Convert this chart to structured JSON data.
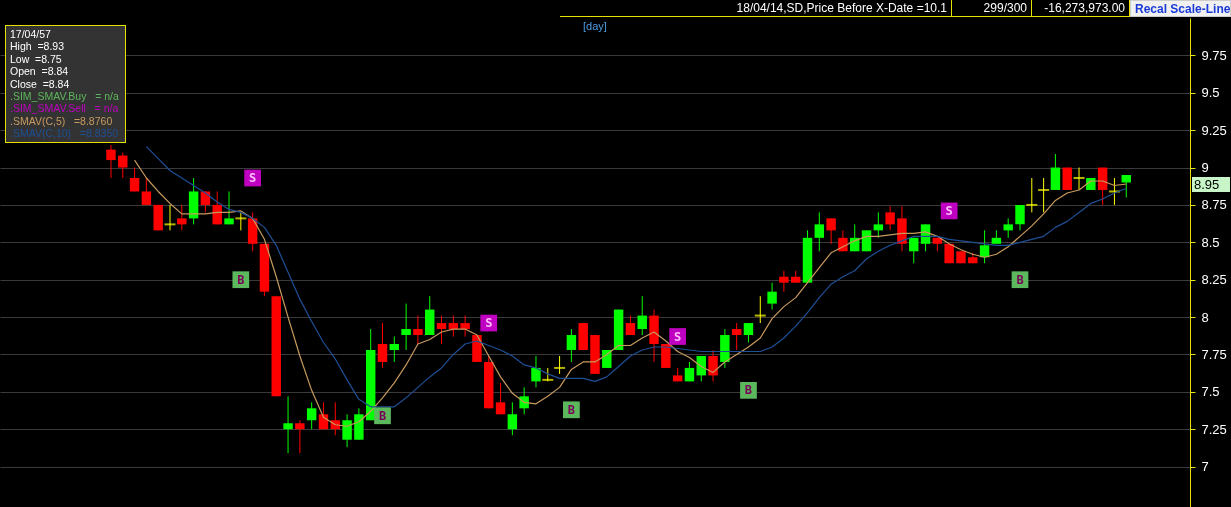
{
  "chart_data": {
    "type": "candlestick",
    "title": "[day]",
    "categories": [
      null,
      null,
      null,
      null,
      null,
      null,
      null,
      null,
      null,
      null,
      null,
      null,
      null,
      null,
      null,
      null,
      null,
      null,
      null,
      null,
      null,
      null,
      null,
      null,
      null,
      null,
      null,
      null,
      null,
      null,
      null,
      null,
      null,
      null,
      null,
      null,
      null,
      null,
      null,
      null,
      null,
      null,
      null,
      null,
      null,
      null,
      null,
      null,
      null,
      null,
      null,
      null,
      null,
      null,
      null,
      null,
      null,
      null,
      null,
      null,
      null,
      null,
      null,
      null,
      null,
      null,
      null,
      null,
      null,
      null,
      null,
      null,
      null,
      null,
      null,
      null,
      null,
      null,
      null,
      null,
      null,
      null,
      null,
      null,
      null,
      null,
      null,
      null,
      null,
      null,
      null,
      null,
      null,
      null,
      null,
      null,
      null,
      null,
      null,
      null,
      null
    ],
    "ohlc": [
      null,
      null,
      null,
      null,
      null,
      null,
      null,
      null,
      null,
      [
        9.12,
        9.15,
        8.93,
        9.05
      ],
      [
        9.08,
        9.1,
        8.93,
        9.0
      ],
      [
        8.93,
        9.0,
        8.84,
        8.84
      ],
      [
        8.84,
        8.93,
        8.75,
        8.75
      ],
      [
        8.75,
        8.75,
        8.58,
        8.58
      ],
      [
        8.62,
        8.75,
        8.58,
        8.62
      ],
      [
        8.66,
        8.75,
        8.58,
        8.62
      ],
      [
        8.66,
        8.93,
        8.62,
        8.84
      ],
      [
        8.84,
        8.84,
        8.7,
        8.75
      ],
      [
        8.75,
        8.84,
        8.62,
        8.62
      ],
      [
        8.62,
        8.84,
        8.62,
        8.66
      ],
      [
        8.66,
        8.7,
        8.58,
        8.66
      ],
      [
        8.66,
        8.7,
        8.44,
        8.49
      ],
      [
        8.49,
        8.49,
        8.14,
        8.17
      ],
      [
        8.14,
        8.14,
        7.47,
        7.47
      ],
      [
        7.25,
        7.47,
        7.09,
        7.29
      ],
      [
        7.29,
        7.31,
        7.09,
        7.25
      ],
      [
        7.31,
        7.43,
        7.25,
        7.39
      ],
      [
        7.35,
        7.43,
        7.25,
        7.25
      ],
      [
        7.31,
        7.43,
        7.21,
        7.25
      ],
      [
        7.18,
        7.35,
        7.13,
        7.31
      ],
      [
        7.18,
        7.39,
        7.18,
        7.35
      ],
      [
        7.31,
        7.92,
        7.31,
        7.78
      ],
      [
        7.82,
        7.96,
        7.66,
        7.7
      ],
      [
        7.78,
        7.87,
        7.7,
        7.82
      ],
      [
        7.88,
        8.09,
        7.78,
        7.92
      ],
      [
        7.92,
        8.01,
        7.82,
        7.88
      ],
      [
        7.88,
        8.14,
        7.88,
        8.05
      ],
      [
        7.96,
        8.01,
        7.82,
        7.92
      ],
      [
        7.96,
        8.01,
        7.87,
        7.92
      ],
      [
        7.96,
        8.01,
        7.87,
        7.92
      ],
      [
        7.88,
        7.88,
        7.7,
        7.7
      ],
      [
        7.7,
        7.74,
        7.39,
        7.39
      ],
      [
        7.43,
        7.56,
        7.35,
        7.35
      ],
      [
        7.25,
        7.43,
        7.21,
        7.35
      ],
      [
        7.39,
        7.53,
        7.35,
        7.47
      ],
      [
        7.57,
        7.74,
        7.53,
        7.66
      ],
      [
        7.58,
        7.66,
        7.57,
        7.58
      ],
      [
        7.66,
        7.74,
        7.62,
        7.66
      ],
      [
        7.78,
        7.92,
        7.7,
        7.88
      ],
      [
        7.96,
        7.96,
        7.78,
        7.78
      ],
      [
        7.88,
        7.88,
        7.62,
        7.62
      ],
      [
        7.66,
        7.78,
        7.66,
        7.78
      ],
      [
        7.78,
        8.05,
        7.78,
        8.05
      ],
      [
        7.96,
        8.01,
        7.88,
        7.88
      ],
      [
        7.92,
        8.14,
        7.88,
        8.01
      ],
      [
        8.01,
        8.05,
        7.7,
        7.82
      ],
      [
        7.82,
        7.82,
        7.66,
        7.66
      ],
      [
        7.61,
        7.66,
        7.57,
        7.57
      ],
      [
        7.57,
        7.7,
        7.57,
        7.66
      ],
      [
        7.61,
        7.74,
        7.57,
        7.74
      ],
      [
        7.74,
        7.78,
        7.57,
        7.61
      ],
      [
        7.7,
        7.92,
        7.66,
        7.88
      ],
      [
        7.92,
        7.96,
        7.78,
        7.88
      ],
      [
        7.88,
        7.96,
        7.83,
        7.96
      ],
      [
        8.01,
        8.14,
        7.96,
        8.01
      ],
      [
        8.09,
        8.23,
        8.05,
        8.17
      ],
      [
        8.27,
        8.31,
        8.17,
        8.23
      ],
      [
        8.27,
        8.31,
        8.23,
        8.23
      ],
      [
        8.23,
        8.58,
        8.23,
        8.53
      ],
      [
        8.53,
        8.7,
        8.44,
        8.62
      ],
      [
        8.66,
        8.66,
        8.49,
        8.58
      ],
      [
        8.53,
        8.58,
        8.44,
        8.44
      ],
      [
        8.44,
        8.62,
        8.44,
        8.53
      ],
      [
        8.44,
        8.58,
        8.44,
        8.58
      ],
      [
        8.58,
        8.7,
        8.53,
        8.62
      ],
      [
        8.7,
        8.74,
        8.58,
        8.62
      ],
      [
        8.66,
        8.74,
        8.44,
        8.49
      ],
      [
        8.44,
        8.53,
        8.36,
        8.53
      ],
      [
        8.49,
        8.62,
        8.44,
        8.62
      ],
      [
        8.53,
        8.53,
        8.44,
        8.49
      ],
      [
        8.49,
        8.49,
        8.36,
        8.36
      ],
      [
        8.44,
        8.44,
        8.36,
        8.36
      ],
      [
        8.4,
        8.43,
        8.36,
        8.36
      ],
      [
        8.4,
        8.58,
        8.36,
        8.48
      ],
      [
        8.49,
        8.58,
        8.49,
        8.53
      ],
      [
        8.58,
        8.66,
        8.53,
        8.62
      ],
      [
        8.62,
        8.75,
        8.58,
        8.75
      ],
      [
        8.75,
        8.93,
        8.7,
        8.75
      ],
      [
        8.85,
        8.93,
        8.7,
        8.85
      ],
      [
        8.85,
        9.09,
        8.85,
        9.0
      ],
      [
        9.0,
        9.0,
        8.85,
        8.85
      ],
      [
        8.93,
        9.0,
        8.85,
        8.93
      ],
      [
        8.85,
        8.93,
        8.85,
        8.93
      ],
      [
        9.0,
        9.0,
        8.75,
        8.85
      ],
      [
        8.84,
        8.93,
        8.75,
        8.84
      ],
      [
        8.9,
        8.95,
        8.8,
        8.95
      ],
      null,
      null,
      null,
      null,
      null
    ],
    "colors": [
      null,
      null,
      null,
      null,
      null,
      null,
      null,
      null,
      null,
      "#ff0000",
      "#ff0000",
      "#ff0000",
      "#ff0000",
      "#ff0000",
      "#ffff00",
      "#ff0000",
      "#00ff00",
      "#ff0000",
      "#ff0000",
      "#00ff00",
      "#ffff00",
      "#ff0000",
      "#ff0000",
      "#ff0000",
      "#00ff00",
      "#ff0000",
      "#00ff00",
      "#ff0000",
      "#ff0000",
      "#00ff00",
      "#00ff00",
      "#00ff00",
      "#ff0000",
      "#00ff00",
      "#00ff00",
      "#ff0000",
      "#00ff00",
      "#ff0000",
      "#ff0000",
      "#ff0000",
      "#ff0000",
      "#ff0000",
      "#ff0000",
      "#00ff00",
      "#00ff00",
      "#00ff00",
      "#ffff00",
      "#ffff00",
      "#00ff00",
      "#ff0000",
      "#ff0000",
      "#00ff00",
      "#00ff00",
      "#ff0000",
      "#00ff00",
      "#ff0000",
      "#ff0000",
      "#ff0000",
      "#00ff00",
      "#00ff00",
      "#ff0000",
      "#00ff00",
      "#ff0000",
      "#00ff00",
      "#ffff00",
      "#00ff00",
      "#ff0000",
      "#ff0000",
      "#00ff00",
      "#00ff00",
      "#ff0000",
      "#ff0000",
      "#00ff00",
      "#00ff00",
      "#00ff00",
      "#ff0000",
      "#ff0000",
      "#00ff00",
      "#00ff00",
      "#ff0000",
      "#ff0000",
      "#ff0000",
      "#ff0000",
      "#00ff00",
      "#00ff00",
      "#00ff00",
      "#00ff00",
      "#ffff00",
      "#ffff00",
      "#00ff00",
      "#ff0000",
      "#ffff00",
      "#00ff00",
      "#ff0000",
      "#ffff00",
      "#00ff00",
      null,
      null,
      null,
      null,
      null
    ],
    "series": [
      {
        "type": "line",
        "color": "#c89a5e",
        "values": [
          null,
          null,
          null,
          null,
          null,
          null,
          null,
          null,
          null,
          null,
          null,
          9.05,
          8.93,
          8.84,
          8.76,
          8.69,
          8.69,
          8.69,
          8.7,
          8.7,
          8.71,
          8.66,
          8.52,
          8.27,
          8.0,
          7.74,
          7.51,
          7.33,
          7.28,
          7.27,
          7.3,
          7.37,
          7.46,
          7.56,
          7.68,
          7.82,
          7.85,
          7.9,
          7.92,
          7.92,
          7.88,
          7.74,
          7.6,
          7.49,
          7.43,
          7.42,
          7.47,
          7.53,
          7.65,
          7.7,
          7.7,
          7.75,
          7.81,
          7.81,
          7.86,
          7.9,
          7.84,
          7.77,
          7.73,
          7.67,
          7.63,
          7.7,
          7.75,
          7.8,
          7.86,
          7.99,
          8.07,
          8.13,
          8.23,
          8.33,
          8.43,
          8.47,
          8.51,
          8.54,
          8.54,
          8.55,
          8.56,
          8.56,
          8.57,
          8.54,
          8.49,
          8.45,
          8.42,
          8.4,
          8.42,
          8.47,
          8.54,
          8.61,
          8.69,
          8.78,
          8.83,
          8.85,
          8.91,
          8.91,
          8.88,
          8.89,
          null,
          null,
          null,
          null,
          null
        ]
      },
      {
        "type": "line",
        "color": "#1f4f96",
        "values": [
          null,
          null,
          null,
          null,
          null,
          null,
          null,
          null,
          null,
          null,
          null,
          null,
          9.14,
          9.06,
          8.98,
          8.93,
          8.88,
          8.83,
          8.77,
          8.72,
          8.7,
          8.66,
          8.6,
          8.48,
          8.3,
          8.12,
          7.97,
          7.83,
          7.72,
          7.58,
          7.45,
          7.4,
          7.4,
          7.4,
          7.46,
          7.53,
          7.6,
          7.66,
          7.75,
          7.82,
          7.84,
          7.81,
          7.78,
          7.74,
          7.68,
          7.66,
          7.62,
          7.59,
          7.59,
          7.59,
          7.57,
          7.6,
          7.67,
          7.74,
          7.78,
          7.8,
          7.8,
          7.79,
          7.78,
          7.77,
          7.77,
          7.77,
          7.77,
          7.77,
          7.77,
          7.8,
          7.86,
          7.94,
          8.03,
          8.13,
          8.22,
          8.27,
          8.31,
          8.39,
          8.44,
          8.48,
          8.51,
          8.54,
          8.54,
          8.54,
          8.52,
          8.51,
          8.5,
          8.49,
          8.48,
          8.48,
          8.5,
          8.52,
          8.54,
          8.6,
          8.64,
          8.7,
          8.76,
          8.79,
          8.83,
          8.86,
          null,
          null,
          null,
          null,
          null
        ]
      },
      {
        "type": "scatter",
        "marker": "square",
        "color": "#5cb85c",
        "values": [
          null,
          null,
          null,
          null,
          null,
          null,
          null,
          null,
          null,
          null,
          null,
          null,
          null,
          null,
          null,
          null,
          null,
          null,
          null,
          null,
          8.25,
          null,
          null,
          null,
          null,
          null,
          null,
          null,
          null,
          null,
          null,
          null,
          7.34,
          null,
          null,
          null,
          null,
          null,
          null,
          null,
          null,
          null,
          null,
          null,
          null,
          null,
          null,
          null,
          7.38,
          null,
          null,
          null,
          null,
          null,
          null,
          null,
          null,
          null,
          null,
          null,
          null,
          null,
          null,
          7.51,
          null,
          null,
          null,
          null,
          null,
          null,
          null,
          null,
          null,
          null,
          null,
          null,
          null,
          null,
          null,
          null,
          null,
          null,
          null,
          null,
          null,
          null,
          8.25,
          null,
          null,
          null,
          null,
          null,
          null,
          null,
          null,
          null,
          null,
          null,
          null,
          null,
          null
        ],
        "value_labels": [
          null,
          null,
          null,
          null,
          null,
          null,
          null,
          null,
          null,
          null,
          null,
          null,
          null,
          null,
          null,
          null,
          null,
          null,
          null,
          null,
          "B",
          null,
          null,
          null,
          null,
          null,
          null,
          null,
          null,
          null,
          null,
          null,
          "B",
          null,
          null,
          null,
          null,
          null,
          null,
          null,
          null,
          null,
          null,
          null,
          null,
          null,
          null,
          null,
          "B",
          null,
          null,
          null,
          null,
          null,
          null,
          null,
          null,
          null,
          null,
          null,
          null,
          null,
          null,
          "B",
          null,
          null,
          null,
          null,
          null,
          null,
          null,
          null,
          null,
          null,
          null,
          null,
          null,
          null,
          null,
          null,
          null,
          null,
          null,
          null,
          null,
          null,
          "B",
          null,
          null,
          null,
          null,
          null,
          null,
          null,
          null,
          null,
          null,
          null,
          null,
          null,
          null
        ]
      },
      {
        "type": "scatter",
        "marker": "square",
        "color": "#c000c0",
        "values": [
          null,
          null,
          null,
          null,
          null,
          null,
          null,
          null,
          null,
          null,
          null,
          null,
          null,
          null,
          null,
          null,
          null,
          null,
          null,
          null,
          null,
          8.93,
          null,
          null,
          null,
          null,
          null,
          null,
          null,
          null,
          null,
          null,
          null,
          null,
          null,
          null,
          null,
          null,
          null,
          null,
          null,
          7.96,
          null,
          null,
          null,
          null,
          null,
          null,
          null,
          null,
          null,
          null,
          null,
          null,
          null,
          null,
          null,
          7.87,
          null,
          null,
          null,
          null,
          null,
          null,
          null,
          null,
          null,
          null,
          null,
          null,
          null,
          null,
          null,
          null,
          null,
          null,
          null,
          null,
          null,
          null,
          8.71,
          null,
          null,
          null,
          null,
          null,
          null,
          null,
          null,
          null,
          null,
          null,
          null,
          null,
          null,
          null,
          null,
          null,
          null,
          null,
          null
        ],
        "value_labels": [
          null,
          null,
          null,
          null,
          null,
          null,
          null,
          null,
          null,
          null,
          null,
          null,
          null,
          null,
          null,
          null,
          null,
          null,
          null,
          null,
          null,
          "S",
          null,
          null,
          null,
          null,
          null,
          null,
          null,
          null,
          null,
          null,
          null,
          null,
          null,
          null,
          null,
          null,
          null,
          null,
          null,
          "S",
          null,
          null,
          null,
          null,
          null,
          null,
          null,
          null,
          null,
          null,
          null,
          null,
          null,
          null,
          null,
          "S",
          null,
          null,
          null,
          null,
          null,
          null,
          null,
          null,
          null,
          null,
          null,
          null,
          null,
          null,
          null,
          null,
          null,
          null,
          null,
          null,
          null,
          null,
          "S",
          null,
          null,
          null,
          null,
          null,
          null,
          null,
          null,
          null,
          null,
          null,
          null,
          null,
          null,
          null,
          null,
          null,
          null,
          null,
          null
        ]
      }
    ],
    "ylim": [
      6.73,
      10.0
    ],
    "yticks": [
      7,
      7.25,
      7.5,
      7.75,
      8,
      8.25,
      8.5,
      8.75,
      9,
      9.25,
      9.5,
      9.75
    ],
    "grid": "y",
    "tick_labels": "y",
    "annotations": [
      "17/04/57",
      "High  =8.93",
      "Low  =8.75",
      "Open  =8.84",
      "Close  =8.84",
      ".SIM_SMAV.Buy   = n/a",
      ".SIM_SMAV.Sell   = n/a",
      ".SMAV(C,5)   =8.8760",
      ".SMAV(C,10)   =8.8350",
      "18/04/14,SD,Price Before X-Date =10.1",
      "299/300",
      "-16,273,973.00",
      "Recal Scale-Line",
      "8.95"
    ]
  }
}
